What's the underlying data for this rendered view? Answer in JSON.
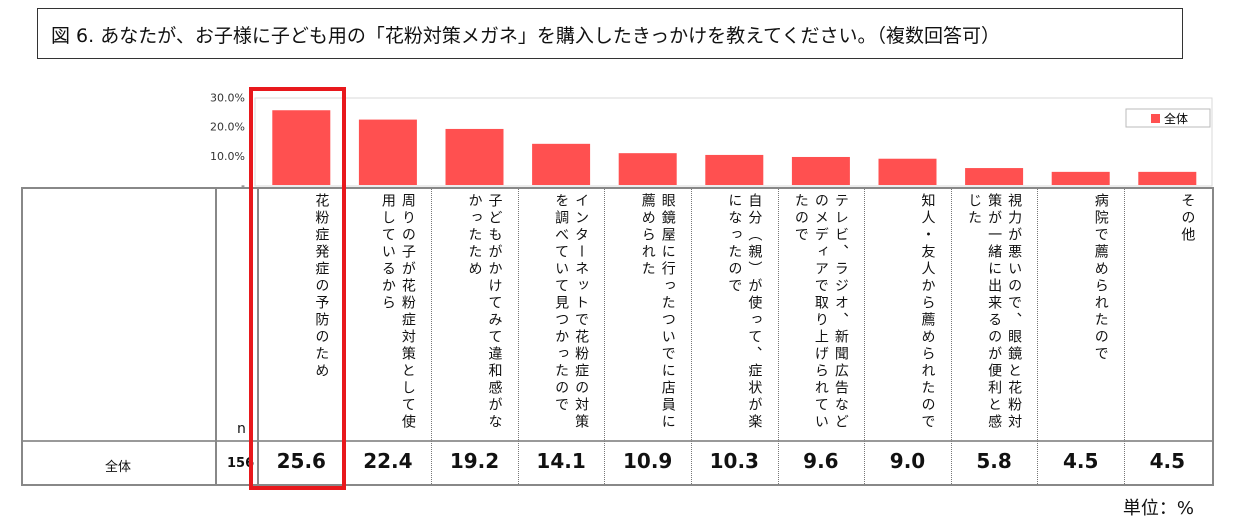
{
  "title": "図 6. あなたが、お子様に子ども用の「花粉対策メガネ」を購入したきっかけを教えてください。（複数回答可）",
  "chart_data": {
    "type": "bar",
    "categories": [
      "花粉症発症の予防のため",
      "周りの子が花粉症対策として使用しているから",
      "子どもがかけてみて違和感がなかったため",
      "インターネットで花粉症の対策を調べていて見つかったので",
      "眼鏡屋に行ったついでに店員に薦められた",
      "自分（親）が使って、症状が楽になったので",
      "テレビ、ラジオ、新聞広告などのメディアで取り上げられていたので",
      "知人・友人から薦められたので",
      "視力が悪いので、眼鏡と花粉対策が一緒に出来るのが便利と感じた",
      "病院で薦められたので",
      "その他"
    ],
    "series": [
      {
        "name": "全体",
        "values": [
          25.6,
          22.4,
          19.2,
          14.1,
          10.9,
          10.3,
          9.6,
          9.0,
          5.8,
          4.5,
          4.5
        ]
      }
    ],
    "value_labels": [
      "25.6",
      "22.4",
      "19.2",
      "14.1",
      "10.9",
      "10.3",
      "9.6",
      "9.0",
      "5.8",
      "4.5",
      "4.5"
    ],
    "ylim": [
      0,
      30
    ],
    "yticks": [
      "30.0%",
      "20.0%",
      "10.0%",
      "-"
    ],
    "legend_position": "top-right",
    "color": "#ff5050",
    "gridlines": false
  },
  "table": {
    "n_header": "n",
    "row_label": "全体",
    "n_value": "156"
  },
  "highlight_color": "#e8181c",
  "unit_note": "単位：%"
}
